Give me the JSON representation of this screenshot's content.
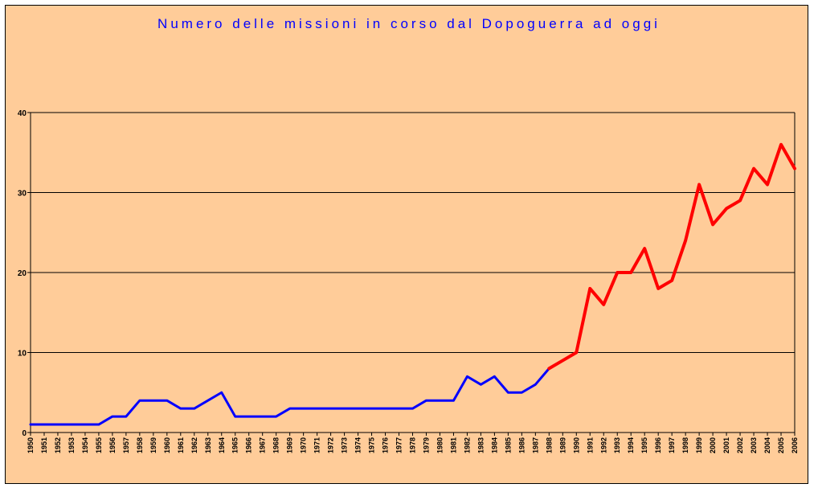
{
  "chart_data": {
    "type": "line",
    "title": "Numero delle missioni in corso dal Dopoguerra ad oggi",
    "x": [
      1950,
      1951,
      1952,
      1953,
      1954,
      1955,
      1956,
      1957,
      1958,
      1959,
      1960,
      1961,
      1962,
      1963,
      1964,
      1965,
      1966,
      1967,
      1968,
      1969,
      1970,
      1971,
      1972,
      1973,
      1974,
      1975,
      1976,
      1977,
      1978,
      1979,
      1980,
      1981,
      1982,
      1983,
      1984,
      1985,
      1986,
      1987,
      1988,
      1989,
      1990,
      1991,
      1992,
      1993,
      1994,
      1995,
      1996,
      1997,
      1998,
      1999,
      2000,
      2001,
      2002,
      2003,
      2004,
      2005,
      2006
    ],
    "xticklabels": [
      "1950",
      "1951",
      "1952",
      "1953",
      "1954",
      "1955",
      "1956",
      "1957",
      "1958",
      "1959",
      "1960",
      "1961",
      "1962",
      "1963",
      "1964",
      "1965",
      "1966",
      "1967",
      "1968",
      "1969",
      "1970",
      "1971",
      "1972",
      "1973",
      "1974",
      "1975",
      "1976",
      "1977",
      "1978",
      "1979",
      "1980",
      "1981",
      "1982",
      "1983",
      "1984",
      "1985",
      "1986",
      "1987",
      "1988",
      "1989",
      "1990",
      "1991",
      "1992",
      "1993",
      "1994",
      "1995",
      "1996",
      "1997",
      "1998",
      "1999",
      "2000",
      "2001",
      "2002",
      "2003",
      "2004",
      "2005",
      "2006"
    ],
    "values": [
      1,
      1,
      1,
      1,
      1,
      1,
      2,
      2,
      4,
      4,
      4,
      3,
      3,
      4,
      5,
      2,
      2,
      2,
      2,
      3,
      3,
      3,
      3,
      3,
      3,
      3,
      3,
      3,
      3,
      4,
      4,
      4,
      7,
      6,
      7,
      5,
      5,
      6,
      8,
      9,
      10,
      18,
      16,
      20,
      20,
      23,
      18,
      19,
      24,
      31,
      26,
      28,
      29,
      33,
      31,
      36,
      33
    ],
    "segments": [
      {
        "from": 1950,
        "to": 1988,
        "color": "#0000ff"
      },
      {
        "from": 1988,
        "to": 2006,
        "color": "#ff0000"
      }
    ],
    "ylim": [
      0,
      40
    ],
    "yticks": [
      0,
      10,
      20,
      30,
      40
    ],
    "xlabel": "",
    "ylabel": "",
    "grid": true,
    "legend": false,
    "background": "#ffcc99",
    "title_color": "#0000ff"
  }
}
